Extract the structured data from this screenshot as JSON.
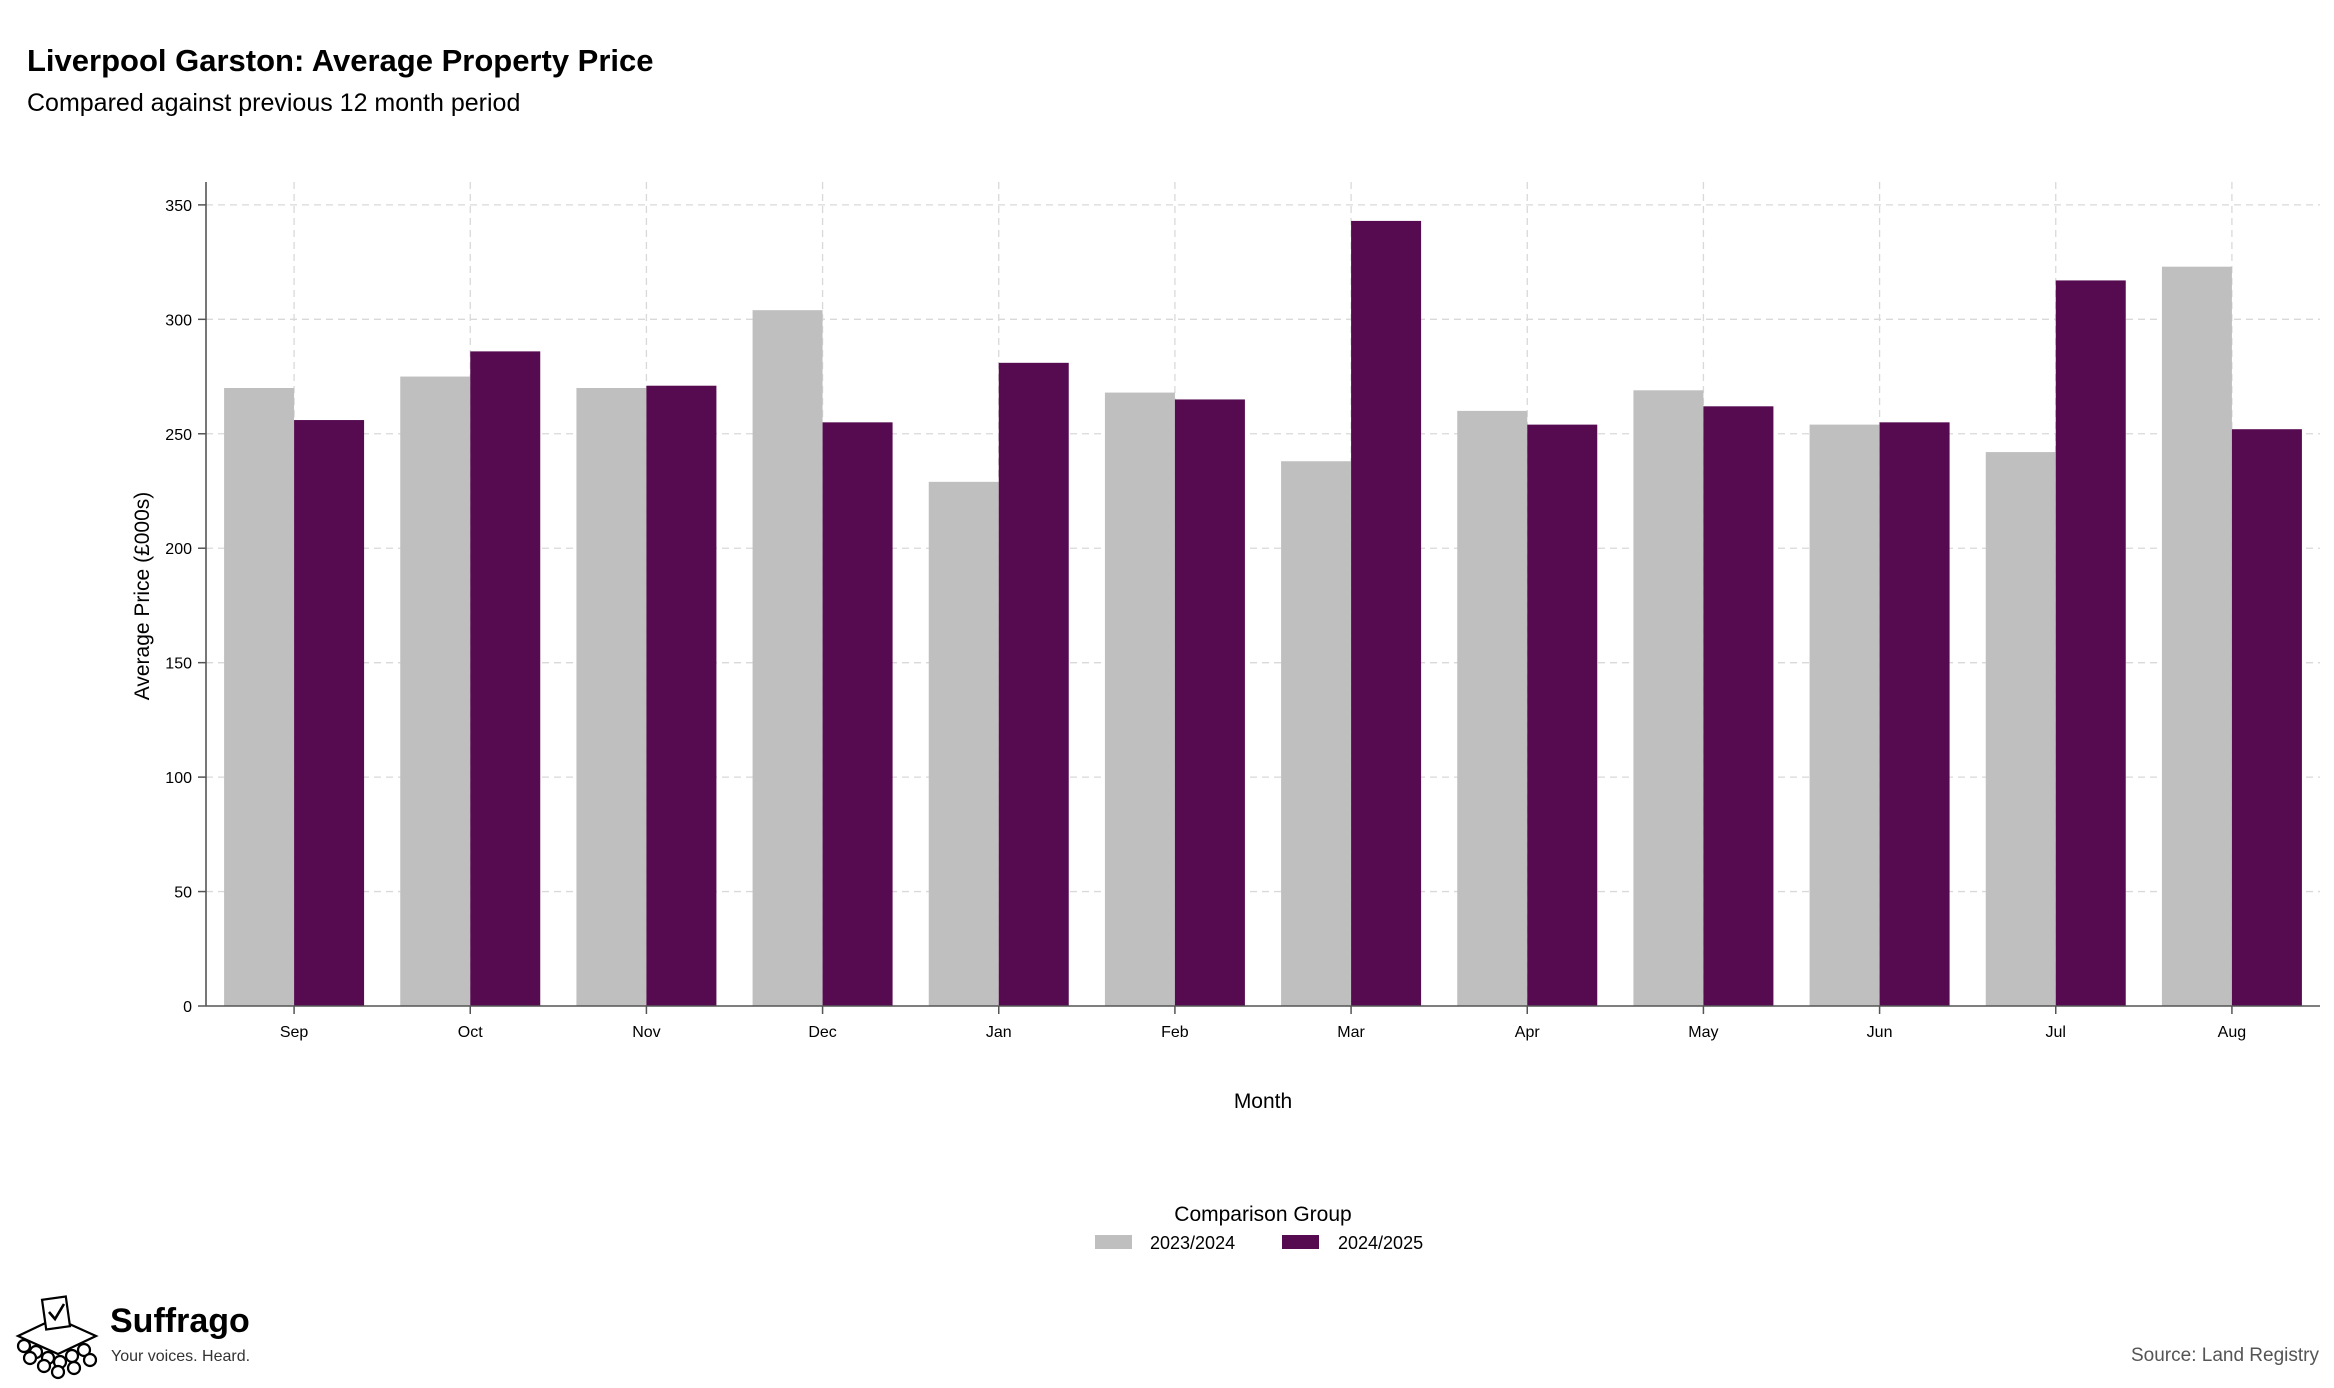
{
  "chart_data": {
    "type": "bar",
    "title": "Liverpool Garston: Average Property Price",
    "subtitle": "Compared against previous 12 month period",
    "xlabel": "Month",
    "ylabel": "Average Price (£000s)",
    "categories": [
      "Sep",
      "Oct",
      "Nov",
      "Dec",
      "Jan",
      "Feb",
      "Mar",
      "Apr",
      "May",
      "Jun",
      "Jul",
      "Aug"
    ],
    "series": [
      {
        "name": "2023/2024",
        "color": "#bfbfbf",
        "values": [
          270,
          275,
          270,
          304,
          229,
          268,
          238,
          260,
          269,
          254,
          242,
          323
        ]
      },
      {
        "name": "2024/2025",
        "color": "#560b51",
        "values": [
          256,
          286,
          271,
          255,
          281,
          265,
          343,
          254,
          262,
          255,
          317,
          252
        ]
      }
    ],
    "ylim": [
      0,
      360
    ],
    "yticks": [
      0,
      50,
      100,
      150,
      200,
      250,
      300,
      350
    ],
    "grid": true,
    "legend": {
      "title": "Comparison Group",
      "placement": "bottom-center"
    }
  },
  "branding": {
    "name": "Suffrago",
    "tagline": "Your voices. Heard.",
    "logo_icon": "ballot-box-icon"
  },
  "source": "Source: Land Registry"
}
